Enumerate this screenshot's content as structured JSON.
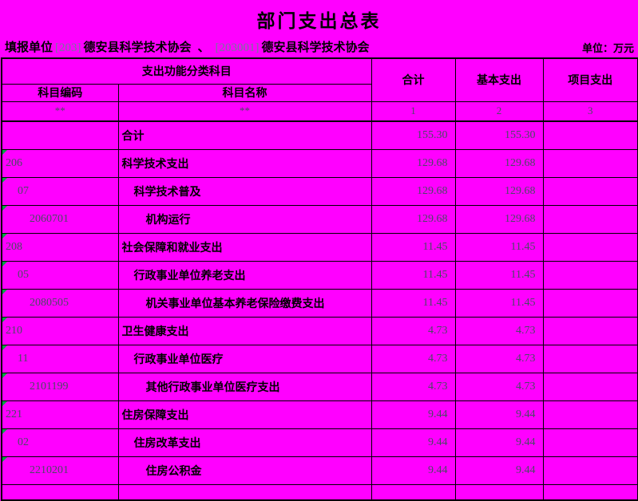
{
  "title": "部门支出总表",
  "unit_label": "单位：万元",
  "report_line": {
    "label": "填报单位",
    "org1_code": "[203]",
    "org1_name": "德安县科学技术协会",
    "separator": "、",
    "org2_code": "[203001]",
    "org2_name": "德安县科学技术协会"
  },
  "table": {
    "header": {
      "func_class": "支出功能分类科目",
      "code_col": "科目编码",
      "name_col": "科目名称",
      "total_col": "合计",
      "basic_col": "基本支出",
      "project_col": "项目支出",
      "code_row": [
        "**",
        "**",
        "1",
        "2",
        "3"
      ]
    },
    "rows": [
      {
        "code": "",
        "name": "合计",
        "indent": 0,
        "total": "155.30",
        "basic": "155.30",
        "project": "",
        "marker": false
      },
      {
        "code": "206",
        "name": "科学技术支出",
        "indent": 0,
        "total": "129.68",
        "basic": "129.68",
        "project": "",
        "marker": true
      },
      {
        "code": "07",
        "name": "科学技术普及",
        "indent": 1,
        "total": "129.68",
        "basic": "129.68",
        "project": "",
        "marker": true
      },
      {
        "code": "2060701",
        "name": "机构运行",
        "indent": 2,
        "total": "129.68",
        "basic": "129.68",
        "project": "",
        "marker": true
      },
      {
        "code": "208",
        "name": "社会保障和就业支出",
        "indent": 0,
        "total": "11.45",
        "basic": "11.45",
        "project": "",
        "marker": true
      },
      {
        "code": "05",
        "name": "行政事业单位养老支出",
        "indent": 1,
        "total": "11.45",
        "basic": "11.45",
        "project": "",
        "marker": true
      },
      {
        "code": "2080505",
        "name": "机关事业单位基本养老保险缴费支出",
        "indent": 2,
        "total": "11.45",
        "basic": "11.45",
        "project": "",
        "marker": true
      },
      {
        "code": "210",
        "name": "卫生健康支出",
        "indent": 0,
        "total": "4.73",
        "basic": "4.73",
        "project": "",
        "marker": true
      },
      {
        "code": "11",
        "name": "行政事业单位医疗",
        "indent": 1,
        "total": "4.73",
        "basic": "4.73",
        "project": "",
        "marker": true
      },
      {
        "code": "2101199",
        "name": "其他行政事业单位医疗支出",
        "indent": 2,
        "total": "4.73",
        "basic": "4.73",
        "project": "",
        "marker": true
      },
      {
        "code": "221",
        "name": "住房保障支出",
        "indent": 0,
        "total": "9.44",
        "basic": "9.44",
        "project": "",
        "marker": true
      },
      {
        "code": "02",
        "name": "住房改革支出",
        "indent": 1,
        "total": "9.44",
        "basic": "9.44",
        "project": "",
        "marker": true
      },
      {
        "code": "2210201",
        "name": "住房公积金",
        "indent": 2,
        "total": "9.44",
        "basic": "9.44",
        "project": "",
        "marker": true
      },
      {
        "code": "",
        "name": "",
        "indent": 0,
        "total": "",
        "basic": "",
        "project": "",
        "marker": false
      }
    ]
  },
  "colors": {
    "background": "#ff00ff",
    "border": "#000000",
    "text": "#000000",
    "muted_number": "#4a4a64",
    "unit_code_text": "#76769c",
    "marker_green": "#00A443"
  }
}
